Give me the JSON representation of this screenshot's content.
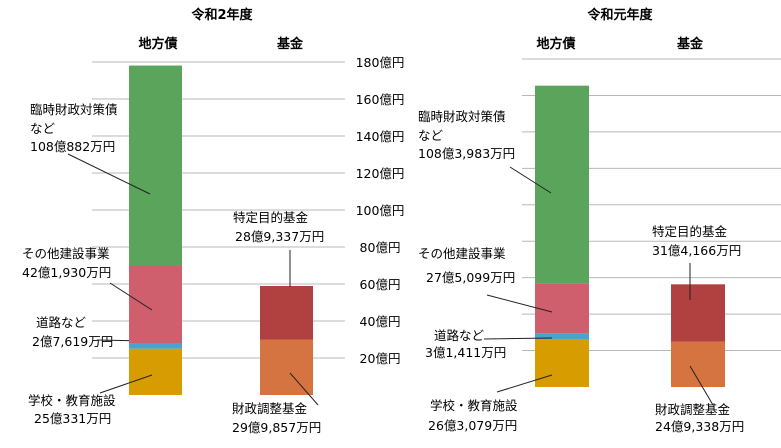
{
  "chart_data": {
    "type": "bar",
    "ylim": [
      0,
      180
    ],
    "unit": "億円",
    "yticks": [
      "20億円",
      "40億円",
      "60億円",
      "80億円",
      "100億円",
      "120億円",
      "140億円",
      "160億円",
      "180億円"
    ],
    "colors": {
      "school": "#d69c00",
      "road": "#4aa3cc",
      "other_construction": "#cf5f6c",
      "covid": "#5aa55b",
      "fiscal_adjustment": "#d57440",
      "specific_purpose": "#b14040"
    },
    "panels": [
      {
        "title": "令和2年度",
        "categories": [
          "地方債",
          "基金"
        ],
        "bars": [
          {
            "category": "地方債",
            "segments": [
              {
                "key": "school",
                "label": "学校・教育施設",
                "value_text": "25億331万円",
                "value": 25.0331
              },
              {
                "key": "road",
                "label": "道路など",
                "value_text": "2億7,619万円",
                "value": 2.7619
              },
              {
                "key": "other_construction",
                "label": "その他建設事業",
                "value_text": "42億1,930万円",
                "value": 42.193
              },
              {
                "key": "covid",
                "label_lines": [
                  "臨時財政対策債",
                  "など"
                ],
                "value_text": "108億882万円",
                "value": 108.0882
              }
            ]
          },
          {
            "category": "基金",
            "segments": [
              {
                "key": "fiscal_adjustment",
                "label": "財政調整基金",
                "value_text": "29億9,857万円",
                "value": 29.9857
              },
              {
                "key": "specific_purpose",
                "label": "特定目的基金",
                "value_text": "28億9,337万円",
                "value": 28.9337
              }
            ]
          }
        ]
      },
      {
        "title": "令和元年度",
        "categories": [
          "地方債",
          "基金"
        ],
        "bars": [
          {
            "category": "地方債",
            "segments": [
              {
                "key": "school",
                "label": "学校・教育施設",
                "value_text": "26億3,079万円",
                "value": 26.3079
              },
              {
                "key": "road",
                "label": "道路など",
                "value_text": "3億1,411万円",
                "value": 3.1411
              },
              {
                "key": "other_construction",
                "label": "その他建設事業",
                "value_text": "27億5,099万円",
                "value": 27.5099
              },
              {
                "key": "covid",
                "label_lines": [
                  "臨時財政対策債",
                  "など"
                ],
                "value_text": "108億3,983万円",
                "value": 108.3983
              }
            ]
          },
          {
            "category": "基金",
            "segments": [
              {
                "key": "fiscal_adjustment",
                "label": "財政調整基金",
                "value_text": "24億9,338万円",
                "value": 24.9338
              },
              {
                "key": "specific_purpose",
                "label": "特定目的基金",
                "value_text": "31億4,166万円",
                "value": 31.4166
              }
            ]
          }
        ]
      }
    ]
  }
}
